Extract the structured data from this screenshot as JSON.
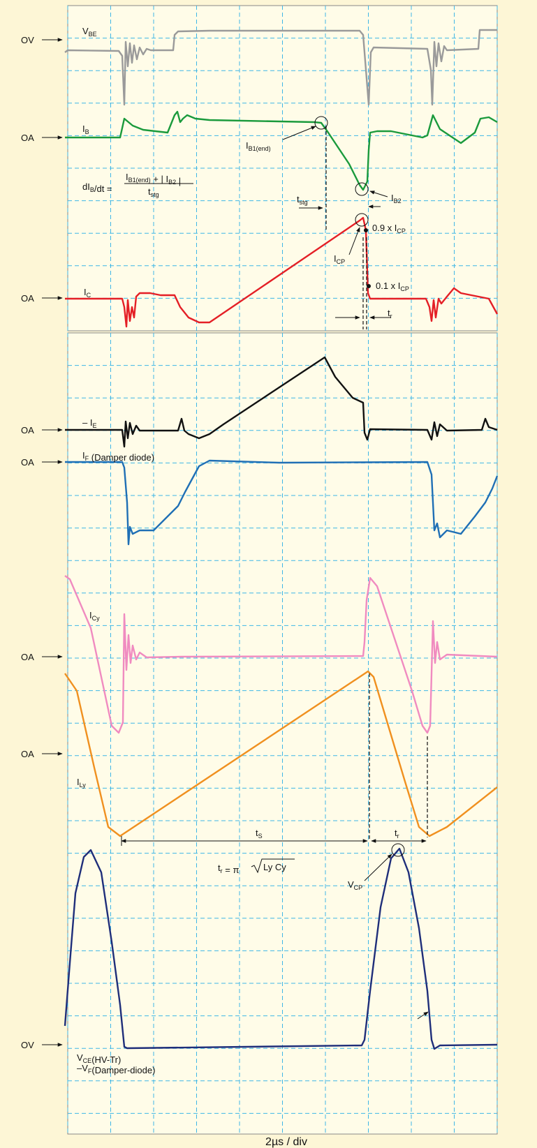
{
  "axis_markers": [
    "OV",
    "OA",
    "OA",
    "OA",
    "OA",
    "OA",
    "OA",
    "OV"
  ],
  "traces": {
    "v_be": {
      "symbol": "V",
      "sub": "BE"
    },
    "i_b": {
      "symbol": "I",
      "sub": "B"
    },
    "i_c": {
      "symbol": "I",
      "sub": "C"
    },
    "minus_i_e": {
      "symbol": "– I",
      "sub": "E"
    },
    "i_f": {
      "symbol": "I",
      "sub": "F",
      "note": " (Damper diode)"
    },
    "i_cy": {
      "symbol": "I",
      "sub": "Cy"
    },
    "i_ly": {
      "symbol": "I",
      "sub": "Ly"
    },
    "v_ce": {
      "symbol": "V",
      "sub": "CE",
      "note": "(HV-Tr)"
    },
    "v_f": {
      "symbol": "–V",
      "sub": "F",
      "note": "(Damper-diode)"
    }
  },
  "annotations": {
    "i_b1_end": {
      "symbol": "I",
      "sub": "B1(end)"
    },
    "i_b2": {
      "symbol": "I",
      "sub": "B2"
    },
    "i_cp": {
      "symbol": "I",
      "sub": "CP"
    },
    "point_09": {
      "prefix": "0.9 x I",
      "sub": "CP"
    },
    "point_01": {
      "prefix": "0.1 x I",
      "sub": "CP"
    },
    "t_stg": {
      "symbol": "t",
      "sub": "stg"
    },
    "t_r_top": {
      "symbol": "t",
      "sub": "r"
    },
    "t_s": {
      "symbol": "t",
      "sub": "S"
    },
    "t_r_bottom": {
      "symbol": "t",
      "sub": "r"
    },
    "v_cp": {
      "symbol": "V",
      "sub": "CP"
    }
  },
  "formulas": {
    "dib_dt": {
      "lhs": "dI",
      "lhs_sub": "B",
      "lhs_tail": "/dt =",
      "num_1": "I",
      "num_1_sub": "B1(end)",
      "num_2": " + | I",
      "num_2_sub": "B2",
      "num_3": " |",
      "den": "t",
      "den_sub": "stg"
    },
    "t_r": {
      "lhs": "t",
      "lhs_sub": "r",
      "rhs": " = π",
      "radicand": "Ly Cy"
    }
  },
  "footer": "2µs / div"
}
